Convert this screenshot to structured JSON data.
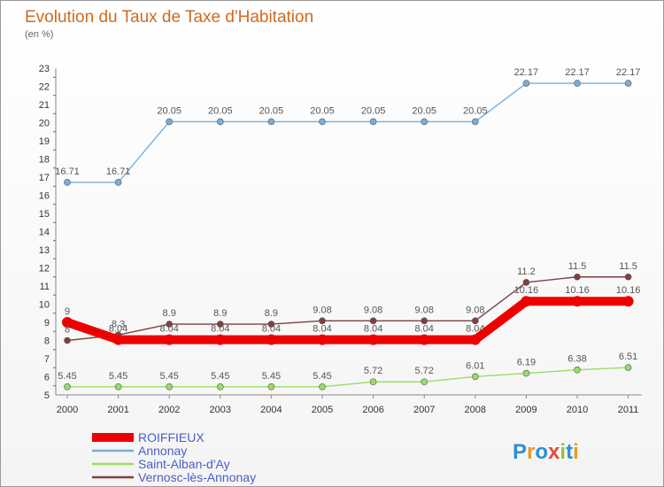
{
  "header": {
    "title": "Evolution du Taux de Taxe d'Habitation",
    "subtitle": "(en %)"
  },
  "logo": {
    "text": "Proxiti"
  },
  "chart_data": {
    "type": "line",
    "title": "Evolution du Taux de Taxe d'Habitation",
    "subtitle": "(en %)",
    "xlabel": "",
    "ylabel": "",
    "categories": [
      "2000",
      "2001",
      "2002",
      "2003",
      "2004",
      "2005",
      "2006",
      "2007",
      "2008",
      "2009",
      "2010",
      "2011"
    ],
    "ylim": [
      5,
      23
    ],
    "yticks": [
      5,
      6,
      7,
      8,
      9,
      10,
      11,
      12,
      13,
      14,
      15,
      16,
      17,
      18,
      19,
      20,
      21,
      22,
      23
    ],
    "grid": false,
    "legend_position": "bottom-left",
    "series": [
      {
        "name": "ROIFFIEUX",
        "color": "#ee0000",
        "values": [
          9,
          8.04,
          8.04,
          8.04,
          8.04,
          8.04,
          8.04,
          8.04,
          8.04,
          10.16,
          10.16,
          10.16
        ],
        "labels": [
          "9",
          "8.04",
          "8.04",
          "8.04",
          "8.04",
          "8.04",
          "8.04",
          "8.04",
          "8.04",
          "10.16",
          "10.16",
          "10.16"
        ]
      },
      {
        "name": "Annonay",
        "color": "#7aaed8",
        "values": [
          16.71,
          16.71,
          20.05,
          20.05,
          20.05,
          20.05,
          20.05,
          20.05,
          20.05,
          22.17,
          22.17,
          22.17
        ],
        "labels": [
          "16.71",
          "16.71",
          "20.05",
          "20.05",
          "20.05",
          "20.05",
          "20.05",
          "20.05",
          "20.05",
          "22.17",
          "22.17",
          "22.17"
        ]
      },
      {
        "name": "Saint-Alban-d'Ay",
        "color": "#99dd66",
        "values": [
          5.45,
          5.45,
          5.45,
          5.45,
          5.45,
          5.45,
          5.72,
          5.72,
          6.01,
          6.19,
          6.38,
          6.51
        ],
        "labels": [
          "5.45",
          "5.45",
          "5.45",
          "5.45",
          "5.45",
          "5.45",
          "5.72",
          "5.72",
          "6.01",
          "6.19",
          "6.38",
          "6.51"
        ]
      },
      {
        "name": "Vernosc-lès-Annonay",
        "color": "#804040",
        "values": [
          8,
          8.3,
          8.9,
          8.9,
          8.9,
          9.08,
          9.08,
          9.08,
          9.08,
          11.2,
          11.5,
          11.5
        ],
        "labels": [
          "8",
          "8.3",
          "8.9",
          "8.9",
          "8.9",
          "9.08",
          "9.08",
          "9.08",
          "9.08",
          "11.2",
          "11.5",
          "11.5"
        ]
      }
    ]
  }
}
